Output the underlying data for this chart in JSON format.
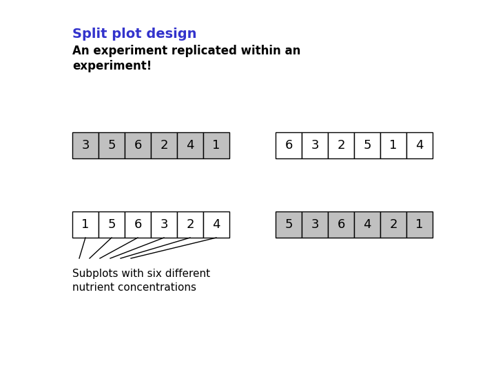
{
  "title": "Split plot design",
  "title_color": "#3333cc",
  "subtitle": "An experiment replicated within an\nexperiment!",
  "row1_left": [
    3,
    5,
    6,
    2,
    4,
    1
  ],
  "row1_right": [
    6,
    3,
    2,
    5,
    1,
    4
  ],
  "row2_left": [
    1,
    5,
    6,
    3,
    2,
    4
  ],
  "row2_right": [
    5,
    3,
    6,
    4,
    2,
    1
  ],
  "row1_left_fill": "#c0c0c0",
  "row1_right_fill": "#ffffff",
  "row2_left_fill": "#ffffff",
  "row2_right_fill": "#c0c0c0",
  "annotation": "Subplots with six different\nnutrient concentrations"
}
